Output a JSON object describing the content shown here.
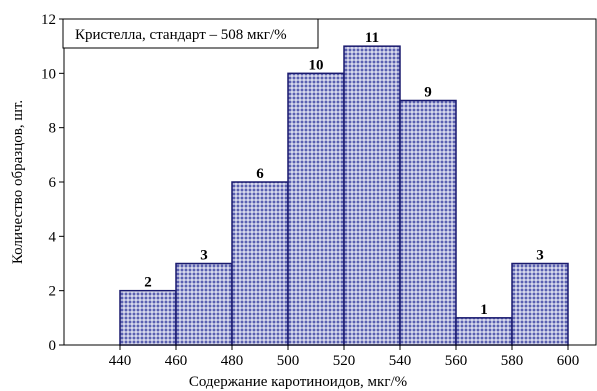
{
  "chart_data": {
    "type": "bar",
    "legend_text": "Кристелла, стандарт – 508 мкг/%",
    "xlabel": "Содержание каротиноидов, мкг/%",
    "ylabel": "Количество образцов, шт.",
    "xlim": [
      420,
      610
    ],
    "ylim": [
      0,
      12
    ],
    "xticks": [
      440,
      460,
      480,
      500,
      520,
      540,
      560,
      580,
      600
    ],
    "yticks": [
      0,
      2,
      4,
      6,
      8,
      10,
      12
    ],
    "bins": [
      {
        "from": 440,
        "to": 460,
        "value": 2
      },
      {
        "from": 460,
        "to": 480,
        "value": 3
      },
      {
        "from": 480,
        "to": 500,
        "value": 6
      },
      {
        "from": 500,
        "to": 520,
        "value": 10
      },
      {
        "from": 520,
        "to": 540,
        "value": 11
      },
      {
        "from": 540,
        "to": 560,
        "value": 9
      },
      {
        "from": 560,
        "to": 580,
        "value": 1
      },
      {
        "from": 580,
        "to": 600,
        "value": 3
      }
    ],
    "grid": false,
    "legend_position": "top-left",
    "bar_fill": "#5a5fb0",
    "bar_edge": "#1a1a6e"
  }
}
